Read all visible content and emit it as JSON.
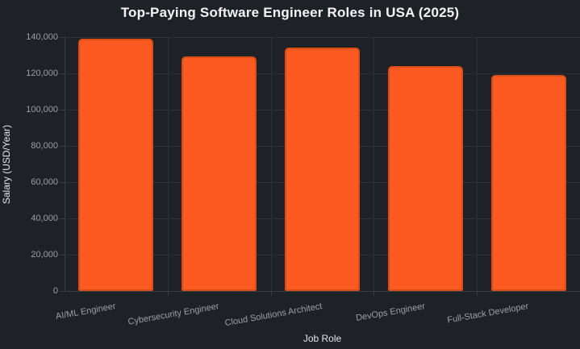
{
  "chart_data": {
    "type": "bar",
    "title": "Top-Paying Software Engineer Roles in USA (2025)",
    "xlabel": "Job Role",
    "ylabel": "Salary (USD/Year)",
    "categories": [
      "AI/ML Engineer",
      "Cybersecurity Engineer",
      "Cloud Solutions Architect",
      "DevOps Engineer",
      "Full-Stack Developer"
    ],
    "values": [
      139000,
      129000,
      134000,
      124000,
      119000
    ],
    "ylim": [
      0,
      140000
    ],
    "ytick_step": 20000,
    "ytick_labels": [
      "0",
      "20,000",
      "40,000",
      "60,000",
      "80,000",
      "100,000",
      "120,000",
      "140,000"
    ],
    "grid": true,
    "legend": false
  },
  "colors": {
    "background": "#1e2126",
    "gridline": "#2d3037",
    "axis_line": "#3a3e46",
    "bar_fill": "#fd5a22",
    "bar_border": "#d94e14",
    "title_text": "#f2f4f6",
    "axis_title_text": "#e3e5e8",
    "tick_text": "#9aa0a6"
  }
}
